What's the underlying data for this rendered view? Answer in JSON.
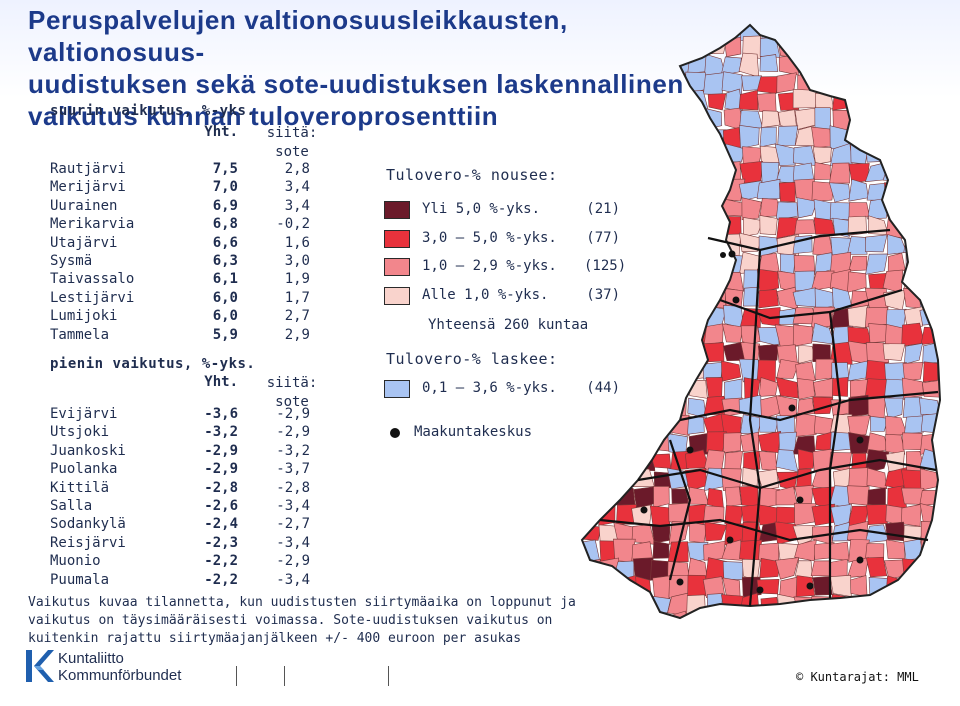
{
  "title_lines": [
    "Peruspalvelujen valtionosuusleikkausten, valtionosuus-",
    "uudistuksen sekä sote-uudistuksen laskennallinen",
    "vaikutus kunnan tuloveroprosenttiin"
  ],
  "largest": {
    "heading": "suurin vaikutus, %-yks.",
    "col_total": "Yht.",
    "col_sote": "siitä: sote",
    "rows": [
      {
        "name": "Rautjärvi",
        "total": "7,5",
        "sote": "2,8"
      },
      {
        "name": "Merijärvi",
        "total": "7,0",
        "sote": "3,4"
      },
      {
        "name": "Uurainen",
        "total": "6,9",
        "sote": "3,4"
      },
      {
        "name": "Merikarvia",
        "total": "6,8",
        "sote": "-0,2"
      },
      {
        "name": "Utajärvi",
        "total": "6,6",
        "sote": "1,6"
      },
      {
        "name": "Sysmä",
        "total": "6,3",
        "sote": "3,0"
      },
      {
        "name": "Taivassalo",
        "total": "6,1",
        "sote": "1,9"
      },
      {
        "name": "Lestijärvi",
        "total": "6,0",
        "sote": "1,7"
      },
      {
        "name": "Lumijoki",
        "total": "6,0",
        "sote": "2,7"
      },
      {
        "name": "Tammela",
        "total": "5,9",
        "sote": "2,9"
      }
    ]
  },
  "smallest": {
    "heading": "pienin vaikutus, %-yks.",
    "col_total": "Yht.",
    "col_sote": "siitä: sote",
    "rows": [
      {
        "name": "Evijärvi",
        "total": "-3,6",
        "sote": "-2,9"
      },
      {
        "name": "Utsjoki",
        "total": "-3,2",
        "sote": "-2,9"
      },
      {
        "name": "Juankoski",
        "total": "-2,9",
        "sote": "-3,2"
      },
      {
        "name": "Puolanka",
        "total": "-2,9",
        "sote": "-3,7"
      },
      {
        "name": "Kittilä",
        "total": "-2,8",
        "sote": "-2,8"
      },
      {
        "name": "Salla",
        "total": "-2,6",
        "sote": "-3,4"
      },
      {
        "name": "Sodankylä",
        "total": "-2,4",
        "sote": "-2,7"
      },
      {
        "name": "Reisjärvi",
        "total": "-2,3",
        "sote": "-3,4"
      },
      {
        "name": "Muonio",
        "total": "-2,2",
        "sote": "-2,9"
      },
      {
        "name": "Puumala",
        "total": "-2,2",
        "sote": "-3,4"
      }
    ]
  },
  "legend": {
    "rises_heading": "Tulovero-% nousee:",
    "rises": [
      {
        "label": "Yli 5,0 %-yks.",
        "count": "(21)",
        "color": "#6b1a2a"
      },
      {
        "label": "3,0 – 5,0 %-yks.",
        "count": "(77)",
        "color": "#e8323c"
      },
      {
        "label": "1,0 – 2,9 %-yks.",
        "count": "(125)",
        "color": "#f2868c"
      },
      {
        "label": "Alle 1,0 %-yks.",
        "count": "(37)",
        "color": "#f9d3cc"
      }
    ],
    "total": "Yhteensä 260 kuntaa",
    "falls_heading": "Tulovero-% laskee:",
    "falls": [
      {
        "label": "0,1 – 3,6 %-yks.",
        "count": "(44)",
        "color": "#a9c4f2"
      }
    ],
    "capital_label": "Maakuntakeskus"
  },
  "footnote_lines": [
    "Vaikutus kuvaa tilannetta, kun uudistusten siirtymäaika on loppunut ja",
    "vaikutus on täysimääräisesti voimassa. Sote-uudistuksen vaikutus on",
    "kuitenkin rajattu siirtymäajanjälkeen +/- 400 euroon per asukas"
  ],
  "logo": {
    "line1": "Kuntaliitto",
    "line2": "Kommunförbundet"
  },
  "credit": "© Kuntarajat: MML"
}
